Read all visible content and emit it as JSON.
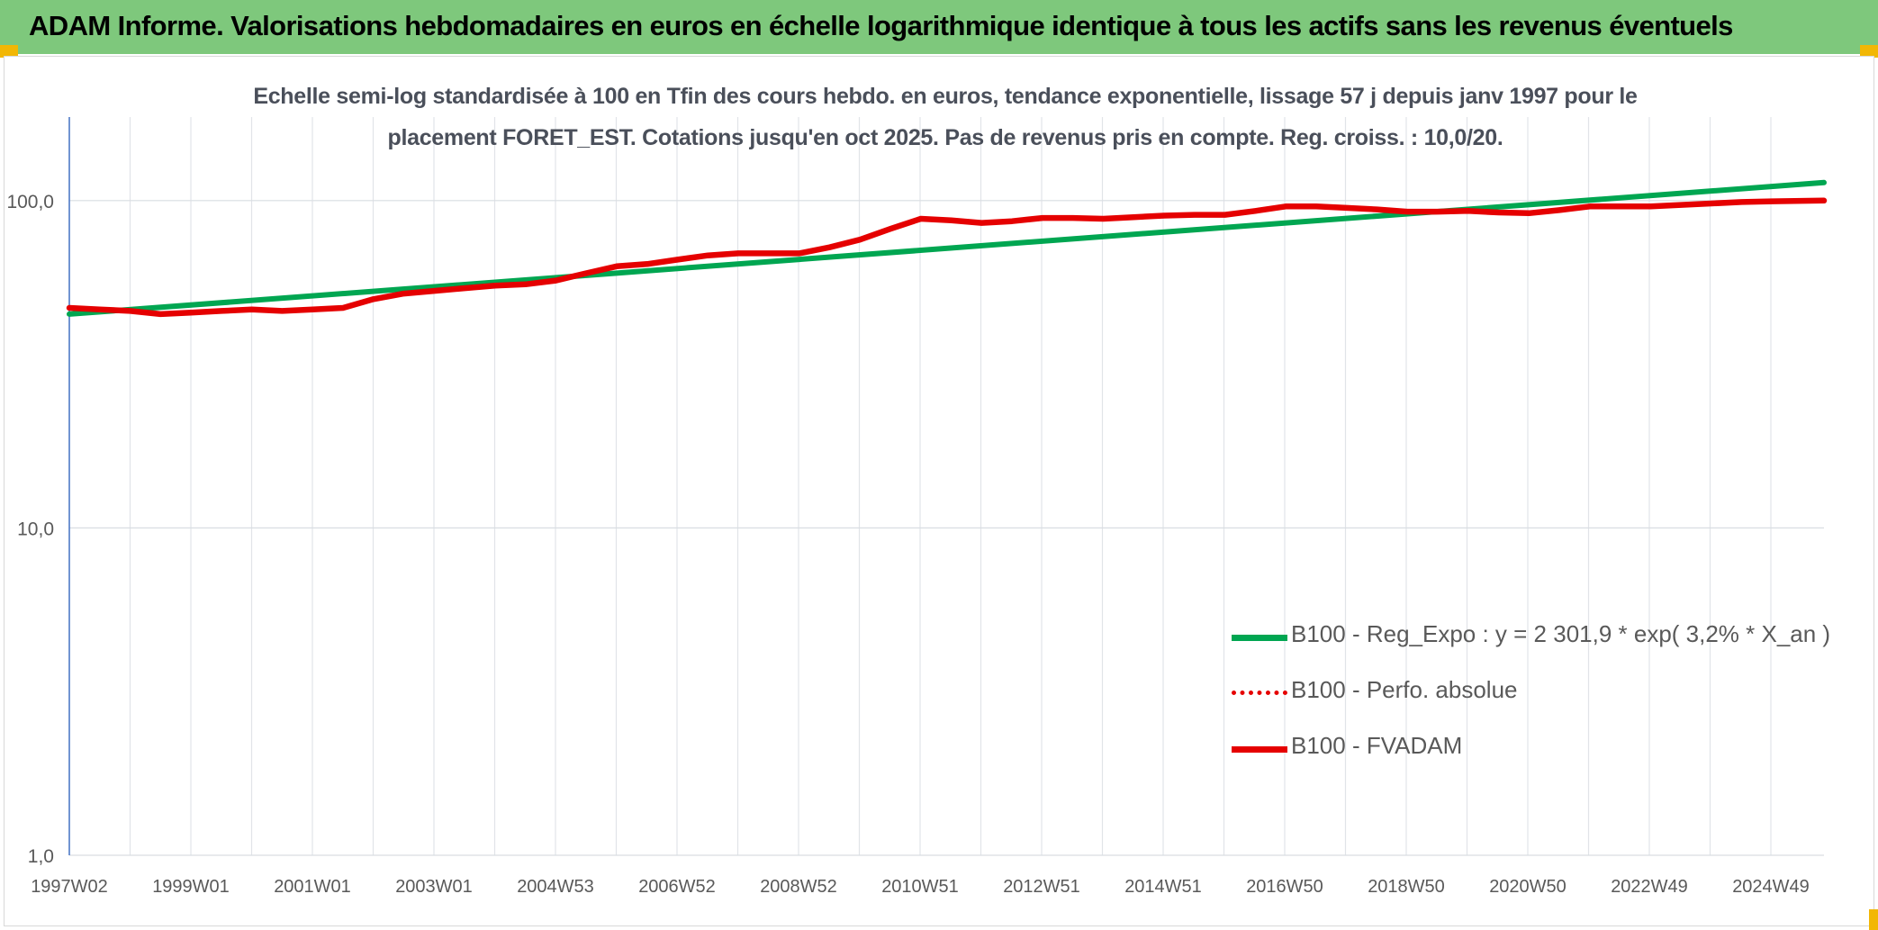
{
  "header": {
    "title": "ADAM Informe. Valorisations hebdomadaires en euros en échelle logarithmique identique à tous les actifs sans les revenus éventuels",
    "background_color": "#7ec87c",
    "corner_color": "#f2b705"
  },
  "chart_data": {
    "type": "line",
    "title_line1": "Echelle semi-log standardisée à 100 en Tfin des cours hebdo. en euros, tendance exponentielle, lissage 57 j depuis janv 1997 pour le",
    "title_line2": "placement FORET_EST. Cotations jusqu'en oct 2025. Pas de revenus pris en compte. Reg. croiss. : 10,0/20.",
    "y_scale": "log",
    "ylim": [
      1,
      180
    ],
    "yticks": [
      {
        "value": 1,
        "label": "1,0"
      },
      {
        "value": 10,
        "label": "10,0"
      },
      {
        "value": 100,
        "label": "100,0"
      }
    ],
    "x_tick_labels": [
      "1997W02",
      "1999W01",
      "2001W01",
      "2003W01",
      "2004W53",
      "2006W52",
      "2008W52",
      "2010W51",
      "2012W51",
      "2014W51",
      "2016W50",
      "2018W50",
      "2020W50",
      "2022W49",
      "2024W49"
    ],
    "xlim": [
      1997.0,
      2025.85
    ],
    "grid": true,
    "legend_position": "lower-right",
    "series": [
      {
        "name": "B100 - Reg_Expo : y = 2 301,9 * exp( 3,2% *  X_an )",
        "color": "#00a651",
        "style": "solid",
        "points": [
          [
            1997.0,
            45.0
          ],
          [
            2025.85,
            113.5
          ]
        ]
      },
      {
        "name": "B100 - Perfo. absolue",
        "color": "#e50000",
        "style": "dotted",
        "points": []
      },
      {
        "name": "B100 - FVADAM",
        "color": "#e50000",
        "style": "solid",
        "points": [
          [
            1997.0,
            47
          ],
          [
            1997.5,
            46.5
          ],
          [
            1998.0,
            46
          ],
          [
            1998.5,
            45
          ],
          [
            1999.0,
            45.5
          ],
          [
            1999.5,
            46
          ],
          [
            2000.0,
            46.5
          ],
          [
            2000.5,
            46
          ],
          [
            2001.0,
            46.5
          ],
          [
            2001.5,
            47
          ],
          [
            2002.0,
            50
          ],
          [
            2002.5,
            52
          ],
          [
            2003.0,
            53
          ],
          [
            2003.5,
            54
          ],
          [
            2004.0,
            55
          ],
          [
            2004.5,
            55.5
          ],
          [
            2005.0,
            57
          ],
          [
            2005.5,
            60
          ],
          [
            2006.0,
            63
          ],
          [
            2006.5,
            64
          ],
          [
            2007.0,
            66
          ],
          [
            2007.5,
            68
          ],
          [
            2008.0,
            69
          ],
          [
            2008.5,
            69
          ],
          [
            2009.0,
            69
          ],
          [
            2009.5,
            72
          ],
          [
            2010.0,
            76
          ],
          [
            2010.5,
            82
          ],
          [
            2011.0,
            88
          ],
          [
            2011.5,
            87
          ],
          [
            2012.0,
            85.5
          ],
          [
            2012.5,
            86.5
          ],
          [
            2013.0,
            88.5
          ],
          [
            2013.5,
            88.5
          ],
          [
            2014.0,
            88
          ],
          [
            2014.5,
            89
          ],
          [
            2015.0,
            90
          ],
          [
            2015.5,
            90.5
          ],
          [
            2016.0,
            90.5
          ],
          [
            2016.5,
            93
          ],
          [
            2017.0,
            96
          ],
          [
            2017.5,
            96
          ],
          [
            2018.0,
            95
          ],
          [
            2018.5,
            94
          ],
          [
            2019.0,
            92.5
          ],
          [
            2019.5,
            92.5
          ],
          [
            2020.0,
            93
          ],
          [
            2020.5,
            92
          ],
          [
            2021.0,
            91.5
          ],
          [
            2021.5,
            93.5
          ],
          [
            2022.0,
            96
          ],
          [
            2022.5,
            96
          ],
          [
            2023.0,
            96
          ],
          [
            2023.5,
            97
          ],
          [
            2024.0,
            98
          ],
          [
            2024.5,
            99
          ],
          [
            2025.0,
            99.5
          ],
          [
            2025.85,
            100
          ]
        ]
      }
    ]
  }
}
